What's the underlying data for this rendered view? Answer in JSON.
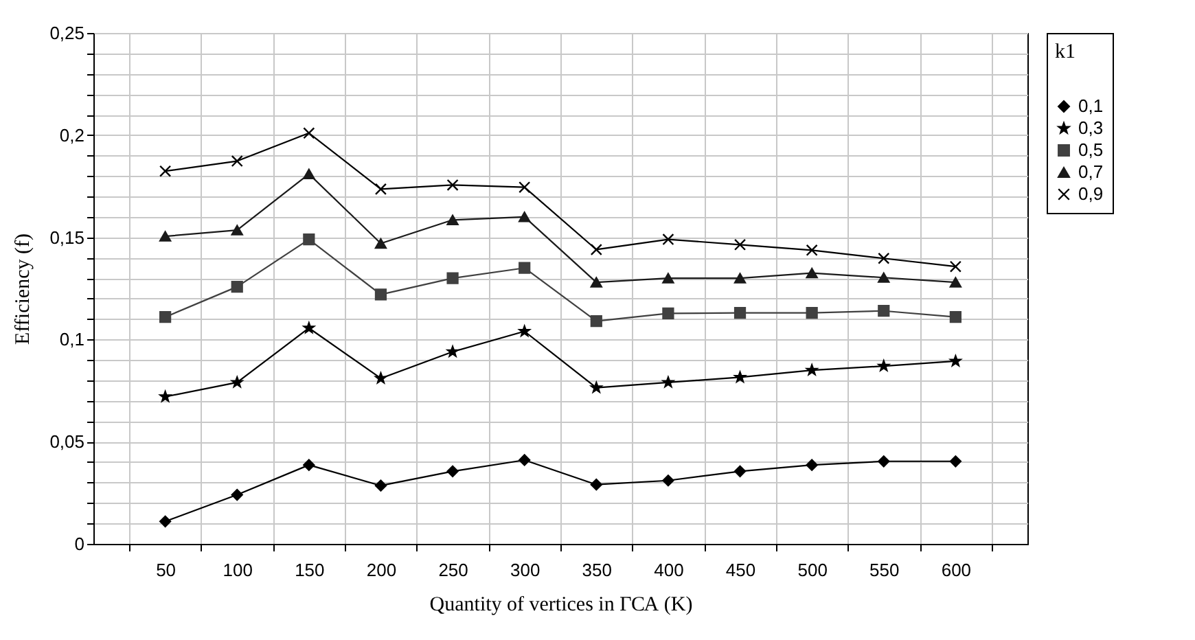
{
  "chart_data": {
    "type": "line",
    "xlabel": "Quantity of vertices in ГСА (K)",
    "ylabel": "Efficiency (f)",
    "legend_title": "k1",
    "legend": "right",
    "grid": true,
    "categories": [
      "50",
      "100",
      "150",
      "200",
      "250",
      "300",
      "350",
      "400",
      "450",
      "500",
      "550",
      "600"
    ],
    "ylim": [
      0,
      0.25
    ],
    "yticks": [
      {
        "value": 0,
        "label": "0"
      },
      {
        "value": 0.01,
        "label": null
      },
      {
        "value": 0.02,
        "label": null
      },
      {
        "value": 0.03,
        "label": null
      },
      {
        "value": 0.04,
        "label": null
      },
      {
        "value": 0.05,
        "label": "0,05"
      },
      {
        "value": 0.06,
        "label": null
      },
      {
        "value": 0.07,
        "label": null
      },
      {
        "value": 0.08,
        "label": null
      },
      {
        "value": 0.09,
        "label": null
      },
      {
        "value": 0.1,
        "label": "0,1"
      },
      {
        "value": 0.11,
        "label": null
      },
      {
        "value": 0.12,
        "label": null
      },
      {
        "value": 0.13,
        "label": null
      },
      {
        "value": 0.14,
        "label": null
      },
      {
        "value": 0.15,
        "label": "0,15"
      },
      {
        "value": 0.16,
        "label": null
      },
      {
        "value": 0.17,
        "label": null
      },
      {
        "value": 0.18,
        "label": null
      },
      {
        "value": 0.19,
        "label": null
      },
      {
        "value": 0.2,
        "label": "0,2"
      },
      {
        "value": 0.21,
        "label": null
      },
      {
        "value": 0.22,
        "label": null
      },
      {
        "value": 0.23,
        "label": null
      },
      {
        "value": 0.24,
        "label": null
      },
      {
        "value": 0.25,
        "label": "0,25"
      }
    ],
    "series": [
      {
        "name": "0,1",
        "color": "#000000",
        "marker": "diamond",
        "values": [
          0.011,
          0.024,
          0.0386,
          0.0285,
          0.0355,
          0.041,
          0.029,
          0.031,
          0.0355,
          0.0386,
          0.0404,
          0.0404
        ]
      },
      {
        "name": "0,3",
        "color": "#000000",
        "marker": "star",
        "values": [
          0.072,
          0.079,
          0.1056,
          0.081,
          0.094,
          0.104,
          0.0764,
          0.079,
          0.0815,
          0.085,
          0.087,
          0.0894
        ]
      },
      {
        "name": "0,5",
        "color": "#404040",
        "marker": "square",
        "values": [
          0.111,
          0.1258,
          0.149,
          0.122,
          0.13,
          0.135,
          0.109,
          0.1128,
          0.113,
          0.113,
          0.114,
          0.111
        ]
      },
      {
        "name": "0,7",
        "color": "#1a1a1a",
        "marker": "triangle",
        "values": [
          0.1505,
          0.1535,
          0.181,
          0.147,
          0.1585,
          0.16,
          0.128,
          0.13,
          0.13,
          0.1325,
          0.1303,
          0.128
        ]
      },
      {
        "name": "0,9",
        "color": "#000000",
        "marker": "cross",
        "values": [
          0.1824,
          0.1873,
          0.201,
          0.1736,
          0.1756,
          0.1745,
          0.144,
          0.149,
          0.1464,
          0.1437,
          0.1397,
          0.1357
        ]
      }
    ]
  }
}
